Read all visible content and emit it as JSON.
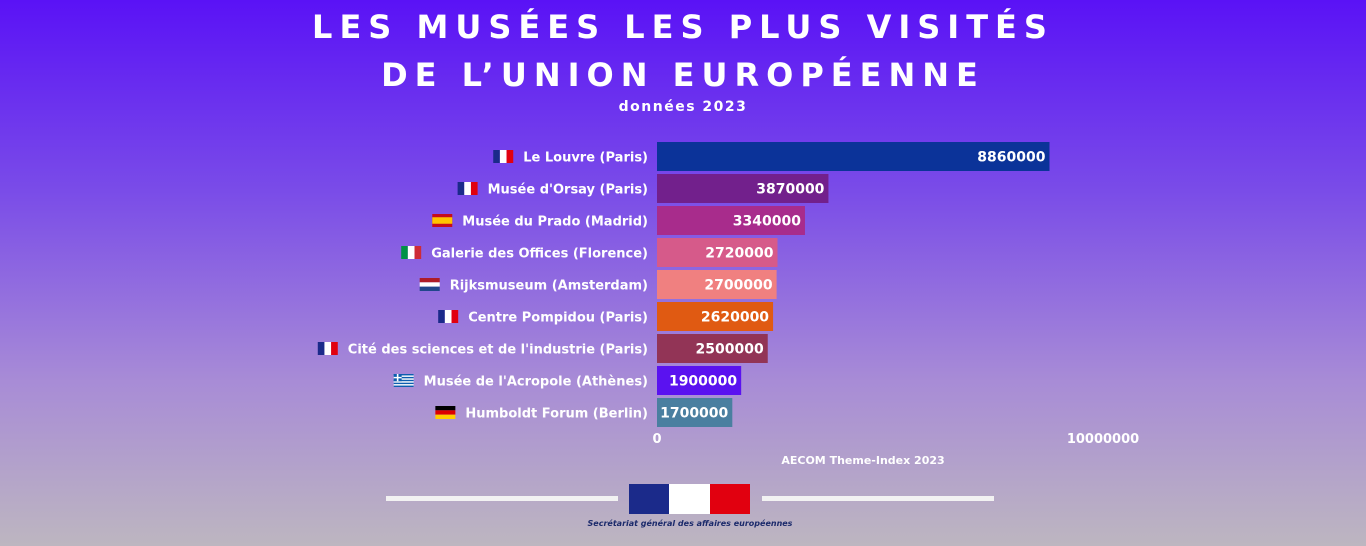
{
  "title_line1": "LES MUSÉES LES PLUS VISITÉS",
  "title_line2": "DE L’UNION EUROPÉENNE",
  "subtitle": "données 2023",
  "chart_data": {
    "type": "bar",
    "orientation": "horizontal",
    "categories": [
      "Le Louvre (Paris)",
      "Musée d'Orsay (Paris)",
      "Musée du Prado (Madrid)",
      "Galerie des Offices (Florence)",
      "Rijksmuseum (Amsterdam)",
      "Centre Pompidou (Paris)",
      "Cité des sciences et de l'industrie (Paris)",
      "Musée de l'Acropole (Athènes)",
      "Humboldt Forum (Berlin)"
    ],
    "values": [
      8860000,
      3870000,
      3340000,
      2720000,
      2700000,
      2620000,
      2500000,
      1900000,
      1700000
    ],
    "value_labels": [
      "8860000",
      "3870000",
      "3340000",
      "2720000",
      "2700000",
      "2620000",
      "2500000",
      "1900000",
      "1700000"
    ],
    "bar_colors": [
      "#0b3399",
      "#72208c",
      "#a82c8c",
      "#d65a8a",
      "#f08080",
      "#e05a12",
      "#923456",
      "#5a12f0",
      "#4a7fa0"
    ],
    "flags": [
      "france",
      "france",
      "spain",
      "italy",
      "netherlands",
      "france",
      "france",
      "greece",
      "germany"
    ],
    "xlim": [
      0,
      10000000
    ],
    "x_ticks": [
      "0",
      "10000000"
    ],
    "source": "AECOM Theme-Index 2023",
    "grid": false,
    "legend": "none"
  },
  "logo": {
    "org_name": "Secrétariat général des affaires européennes",
    "colors": [
      "#1b2a8a",
      "#ffffff",
      "#e1000f"
    ]
  }
}
